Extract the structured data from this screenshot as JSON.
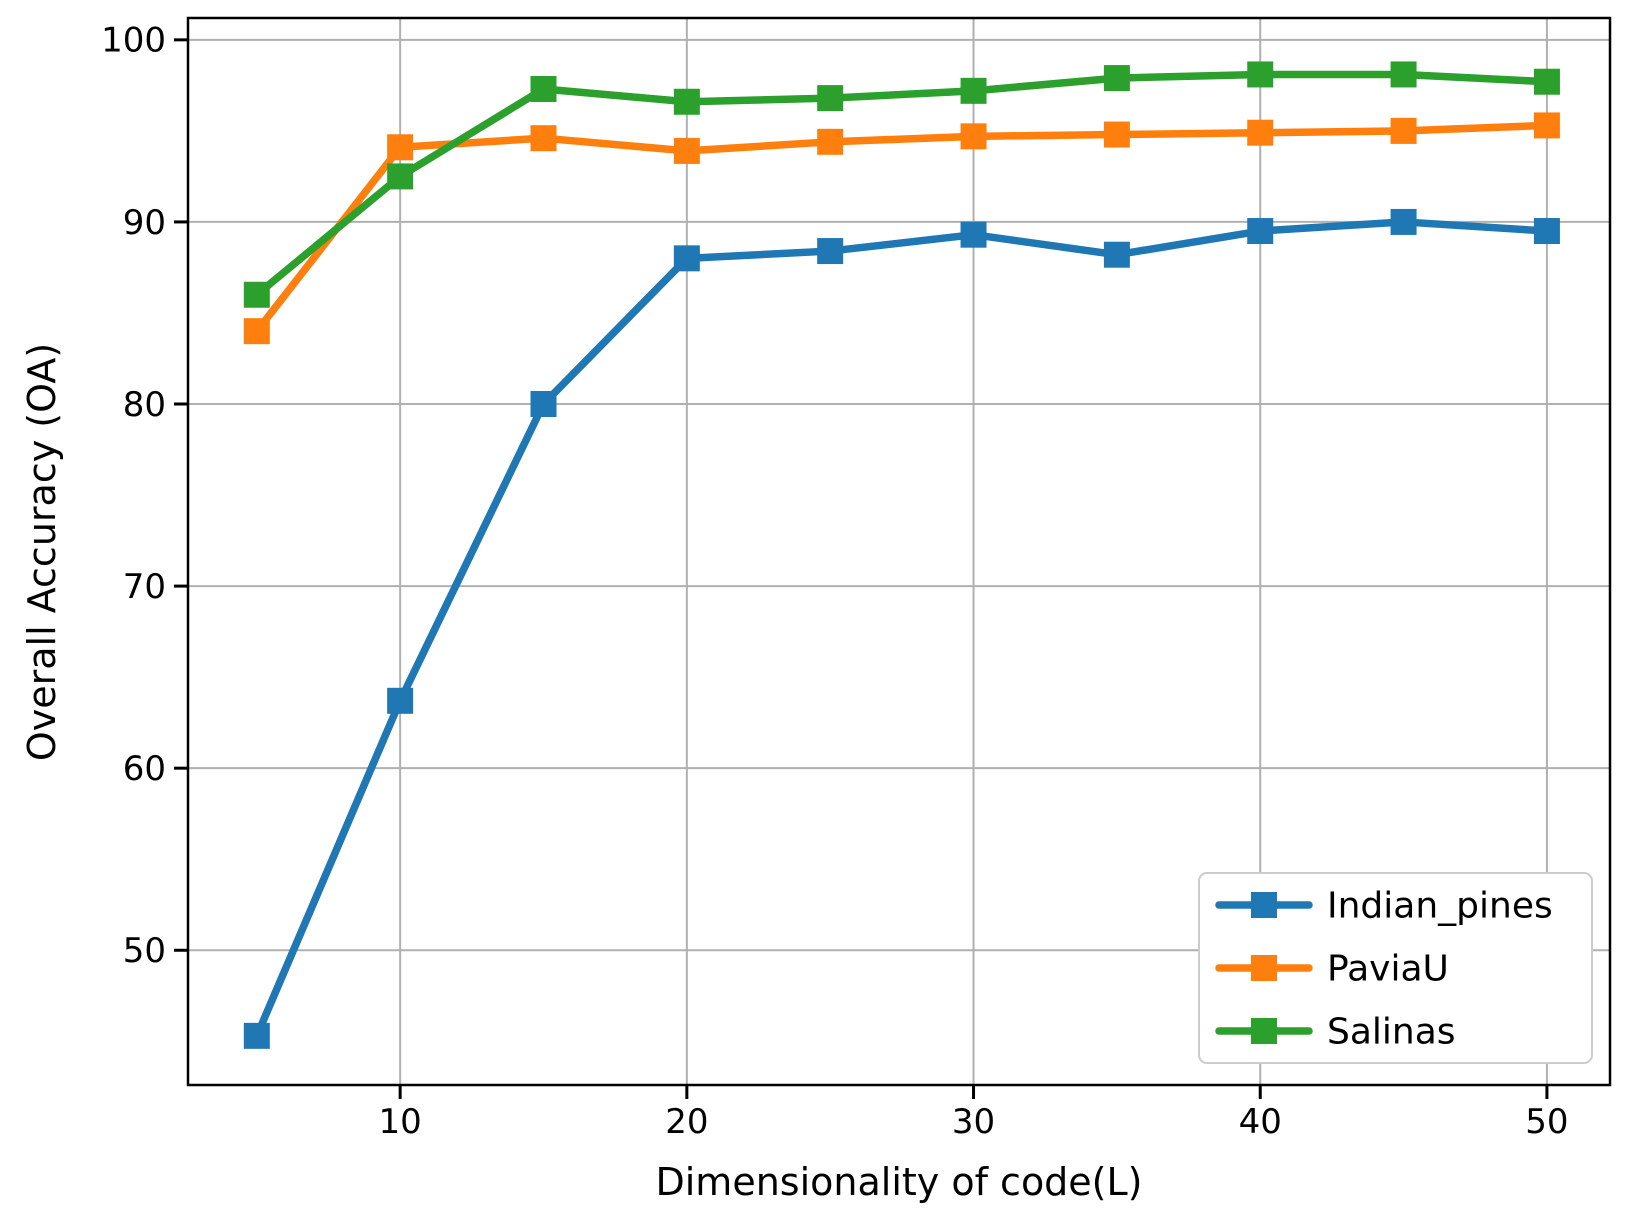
{
  "chart_data": {
    "type": "line",
    "title": "",
    "xlabel": "Dimensionality of code(L)",
    "ylabel": "Overall Accuracy (OA)",
    "x": [
      5,
      10,
      15,
      20,
      25,
      30,
      35,
      40,
      45,
      50
    ],
    "series": [
      {
        "name": "Indian_pines",
        "color": "#1f77b4",
        "values": [
          45.3,
          63.7,
          80.0,
          88.0,
          88.4,
          89.3,
          88.2,
          89.5,
          90.0,
          89.5
        ]
      },
      {
        "name": "PaviaU",
        "color": "#ff7f0e",
        "values": [
          84.0,
          94.1,
          94.6,
          93.9,
          94.4,
          94.7,
          94.8,
          94.9,
          95.0,
          95.3
        ]
      },
      {
        "name": "Salinas",
        "color": "#2ca02c",
        "values": [
          86.0,
          92.5,
          97.3,
          96.6,
          96.8,
          97.2,
          97.9,
          98.1,
          98.1,
          97.7
        ]
      }
    ],
    "xticks": [
      10,
      20,
      30,
      40,
      50
    ],
    "yticks": [
      50,
      60,
      70,
      80,
      90,
      100
    ],
    "xlim": [
      2.6,
      52.2
    ],
    "ylim": [
      42.6,
      101.2
    ],
    "grid": true,
    "marker": "square",
    "legend_position": "lower right",
    "colors": {
      "grid": "#b0b0b0",
      "spine": "#000000",
      "text": "#000000",
      "legend_border": "#cccccc",
      "background": "#ffffff"
    }
  }
}
